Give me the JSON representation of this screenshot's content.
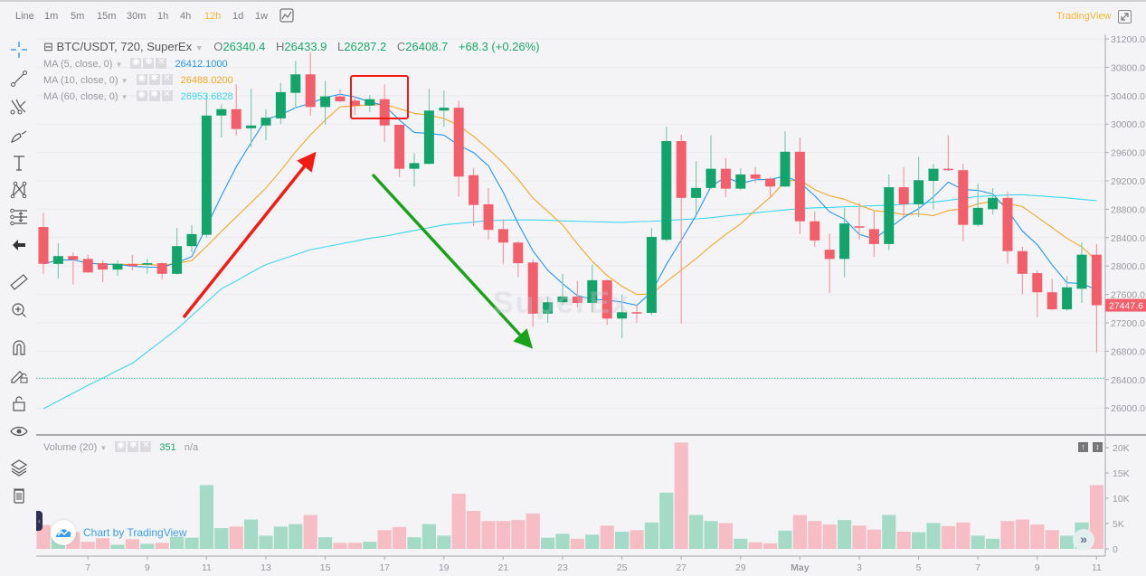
{
  "toolbar": {
    "timeframes": [
      "Line",
      "1m",
      "5m",
      "15m",
      "30m",
      "1h",
      "4h",
      "12h",
      "1d",
      "1w"
    ],
    "active_timeframe": "12h",
    "brand": "TradingView"
  },
  "legend": {
    "symbol": "BTC/USDT, 720, SuperEx",
    "o_label": "O",
    "o": "26340.4",
    "h_label": "H",
    "h": "26433.9",
    "l_label": "L",
    "l": "26287.2",
    "c_label": "C",
    "c": "26408.7",
    "change": "+68.3 (+0.26%)",
    "ma": [
      {
        "label": "MA (5, close, 0)",
        "value": "26412.1000",
        "color": "#2196f3"
      },
      {
        "label": "MA (10, close, 0)",
        "value": "26488.0200",
        "color": "#f5a623"
      },
      {
        "label": "MA (60, close, 0)",
        "value": "26953.6828",
        "color": "#3ad7f0"
      }
    ]
  },
  "volume_legend": {
    "label": "Volume (20)",
    "value": "351",
    "extra": "n/a"
  },
  "watermark": "SuperEx",
  "attribution": "Chart by TradingView",
  "colors": {
    "up": "#12a46b",
    "down": "#f25f6a",
    "up_volume": "#a3dbc6",
    "down_volume": "#f6bec4",
    "last_price": "#f25f6a",
    "hline": "#2cc08a"
  },
  "chart_data": {
    "type": "candlestick",
    "symbol": "BTC/USDT",
    "ylim": [
      25800,
      31300
    ],
    "price_ticks": [
      "31200.0",
      "30800.0",
      "30400.0",
      "30000.0",
      "29600.0",
      "29200.0",
      "28800.0",
      "28400.0",
      "28000.0",
      "27600.0",
      "27200.0",
      "26800.0",
      "26400.0",
      "26000.0"
    ],
    "x_ticks": [
      "7",
      "9",
      "11",
      "13",
      "15",
      "17",
      "19",
      "21",
      "23",
      "25",
      "27",
      "29",
      "May",
      "3",
      "5",
      "7",
      "9",
      "11"
    ],
    "last_price": "27447.6",
    "horizontal_line": 26420,
    "ohlc": [
      [
        28550,
        28750,
        27890,
        28030
      ],
      [
        28030,
        28320,
        27820,
        28140
      ],
      [
        28140,
        28190,
        27740,
        28090
      ],
      [
        28100,
        28160,
        27900,
        27910
      ],
      [
        28040,
        28080,
        27770,
        27950
      ],
      [
        27950,
        28080,
        27860,
        28030
      ],
      [
        28030,
        28160,
        27940,
        28000
      ],
      [
        28020,
        28100,
        27890,
        28040
      ],
      [
        28040,
        28050,
        27810,
        27890
      ],
      [
        27890,
        28540,
        27880,
        28280
      ],
      [
        28280,
        28580,
        28190,
        28450
      ],
      [
        28440,
        30410,
        28400,
        30120
      ],
      [
        30120,
        30280,
        29810,
        30210
      ],
      [
        30210,
        30560,
        29840,
        29930
      ],
      [
        29940,
        30500,
        29670,
        29980
      ],
      [
        29980,
        30210,
        29770,
        30090
      ],
      [
        30080,
        30580,
        30000,
        30450
      ],
      [
        30440,
        30890,
        30220,
        30700
      ],
      [
        30700,
        31010,
        30120,
        30240
      ],
      [
        30240,
        30610,
        29990,
        30390
      ],
      [
        30390,
        30490,
        30310,
        30320
      ],
      [
        30330,
        30390,
        30130,
        30260
      ],
      [
        30260,
        30410,
        30170,
        30350
      ],
      [
        30350,
        30560,
        29750,
        29980
      ],
      [
        29990,
        29990,
        29250,
        29370
      ],
      [
        29370,
        29590,
        29120,
        29450
      ],
      [
        29440,
        30500,
        29430,
        30190
      ],
      [
        30190,
        30470,
        29960,
        30230
      ],
      [
        30230,
        30330,
        28980,
        29260
      ],
      [
        29280,
        29380,
        28560,
        28860
      ],
      [
        28870,
        29100,
        28370,
        28510
      ],
      [
        28520,
        28660,
        28030,
        28330
      ],
      [
        28330,
        28350,
        27840,
        28040
      ],
      [
        28050,
        28100,
        27140,
        27330
      ],
      [
        27330,
        27570,
        27200,
        27490
      ],
      [
        27490,
        27890,
        27450,
        27570
      ],
      [
        27570,
        27790,
        27420,
        27480
      ],
      [
        27480,
        28020,
        27350,
        27800
      ],
      [
        27800,
        27810,
        27170,
        27260
      ],
      [
        27260,
        27600,
        26980,
        27350
      ],
      [
        27350,
        27450,
        27200,
        27340
      ],
      [
        27340,
        28540,
        27310,
        28410
      ],
      [
        28370,
        29960,
        28350,
        29760
      ],
      [
        29760,
        29850,
        27190,
        28960
      ],
      [
        28960,
        29480,
        28720,
        29100
      ],
      [
        29100,
        29840,
        29090,
        29370
      ],
      [
        29370,
        29520,
        28970,
        29090
      ],
      [
        29090,
        29380,
        29070,
        29290
      ],
      [
        29290,
        29390,
        29170,
        29230
      ],
      [
        29230,
        29250,
        28980,
        29120
      ],
      [
        29120,
        29900,
        29110,
        29610
      ],
      [
        29610,
        29810,
        28450,
        28630
      ],
      [
        28630,
        28770,
        28270,
        28360
      ],
      [
        28230,
        28460,
        27620,
        28100
      ],
      [
        28100,
        28820,
        27840,
        28600
      ],
      [
        28560,
        28890,
        28370,
        28540
      ],
      [
        28520,
        28780,
        28130,
        28310
      ],
      [
        28310,
        29290,
        28220,
        29110
      ],
      [
        29110,
        29390,
        28690,
        28870
      ],
      [
        28870,
        29540,
        28690,
        29210
      ],
      [
        29200,
        29440,
        28800,
        29370
      ],
      [
        29370,
        29840,
        29340,
        29350
      ],
      [
        29350,
        29440,
        28350,
        28580
      ],
      [
        28580,
        29160,
        28550,
        28820
      ],
      [
        28800,
        29100,
        28730,
        28960
      ],
      [
        28960,
        29050,
        28030,
        28210
      ],
      [
        28210,
        28270,
        27600,
        27890
      ],
      [
        27900,
        27940,
        27280,
        27630
      ],
      [
        27630,
        27820,
        27380,
        27390
      ],
      [
        27390,
        27860,
        27370,
        27700
      ],
      [
        27680,
        28330,
        27480,
        28160
      ],
      [
        28160,
        28310,
        26780,
        27447.6
      ]
    ],
    "ma60": [
      25990,
      26100,
      26210,
      26320,
      26420,
      26530,
      26630,
      26790,
      26950,
      27110,
      27300,
      27490,
      27680,
      27790,
      27910,
      28020,
      28090,
      28160,
      28230,
      28270,
      28310,
      28350,
      28390,
      28420,
      28460,
      28500,
      28540,
      28580,
      28600,
      28620,
      28640,
      28645,
      28650,
      28650,
      28645,
      28635,
      28630,
      28625,
      28620,
      28615,
      28625,
      28630,
      28640,
      28655,
      28665,
      28680,
      28705,
      28725,
      28750,
      28770,
      28790,
      28810,
      28820,
      28825,
      28835,
      28840,
      28850,
      28855,
      28870,
      28885,
      28900,
      28925,
      28955,
      28980,
      28990,
      29000,
      29005,
      28990,
      28975,
      28960,
      28940,
      28920
    ],
    "volume": {
      "ylim": [
        0,
        21000
      ],
      "ticks": [
        "20K",
        "15K",
        "10K",
        "5K",
        "0"
      ],
      "values": [
        4700,
        2500,
        3300,
        1400,
        2100,
        800,
        1900,
        1000,
        1200,
        2400,
        2200,
        12600,
        4100,
        4400,
        5800,
        2600,
        4400,
        4900,
        6700,
        2300,
        1200,
        1200,
        1400,
        3700,
        4300,
        2300,
        4900,
        2600,
        10900,
        7500,
        5500,
        5500,
        5700,
        7000,
        2200,
        3000,
        2000,
        2800,
        4600,
        3400,
        3700,
        5200,
        11100,
        21000,
        6700,
        5500,
        5100,
        2000,
        1300,
        1100,
        3600,
        6700,
        5500,
        4800,
        5700,
        4600,
        3800,
        6700,
        3400,
        3300,
        5100,
        4500,
        5200,
        2600,
        2000,
        5500,
        5800,
        4800,
        3700,
        2600,
        5200,
        12600
      ]
    }
  }
}
